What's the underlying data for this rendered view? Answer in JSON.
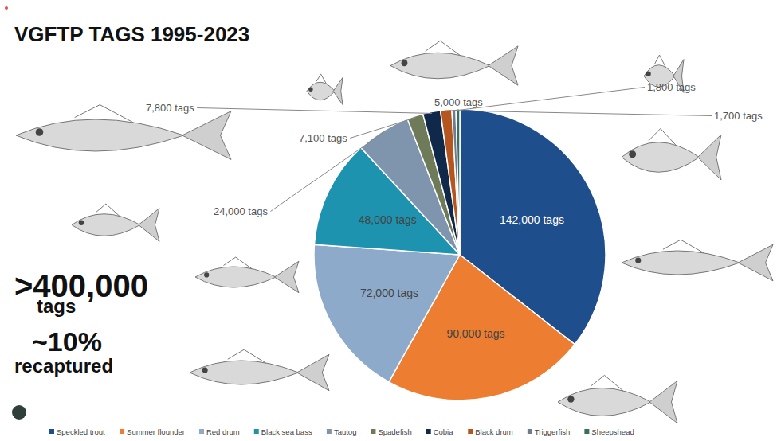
{
  "chart_data": {
    "type": "pie",
    "title": "VGFTP TAGS 1995-2023",
    "categories": [
      "Speckled trout",
      "Summer flounder",
      "Red drum",
      "Black sea bass",
      "Tautog",
      "Spadefish",
      "Cobia",
      "Black drum",
      "Triggerfish",
      "Sheepshead"
    ],
    "values": [
      142000,
      90000,
      72000,
      48000,
      24000,
      7100,
      7800,
      5000,
      1800,
      1700
    ],
    "value_labels": [
      "142,000 tags",
      "90,000 tags",
      "72,000 tags",
      "48,000 tags",
      "24,000 tags",
      "7,100 tags",
      "7,800 tags",
      "5,000 tags",
      "1,800 tags",
      "1,700 tags"
    ],
    "colors": [
      "#1f4e8c",
      "#ed7d31",
      "#8eaacb",
      "#1e93b0",
      "#7f95ad",
      "#6f7a58",
      "#10294a",
      "#b4561e",
      "#6e7d8e",
      "#3b6e5c"
    ],
    "data_labels": true,
    "legend": "bottom",
    "annotations": [
      ">400,000",
      "tags",
      "~10%",
      "recaptured"
    ]
  }
}
